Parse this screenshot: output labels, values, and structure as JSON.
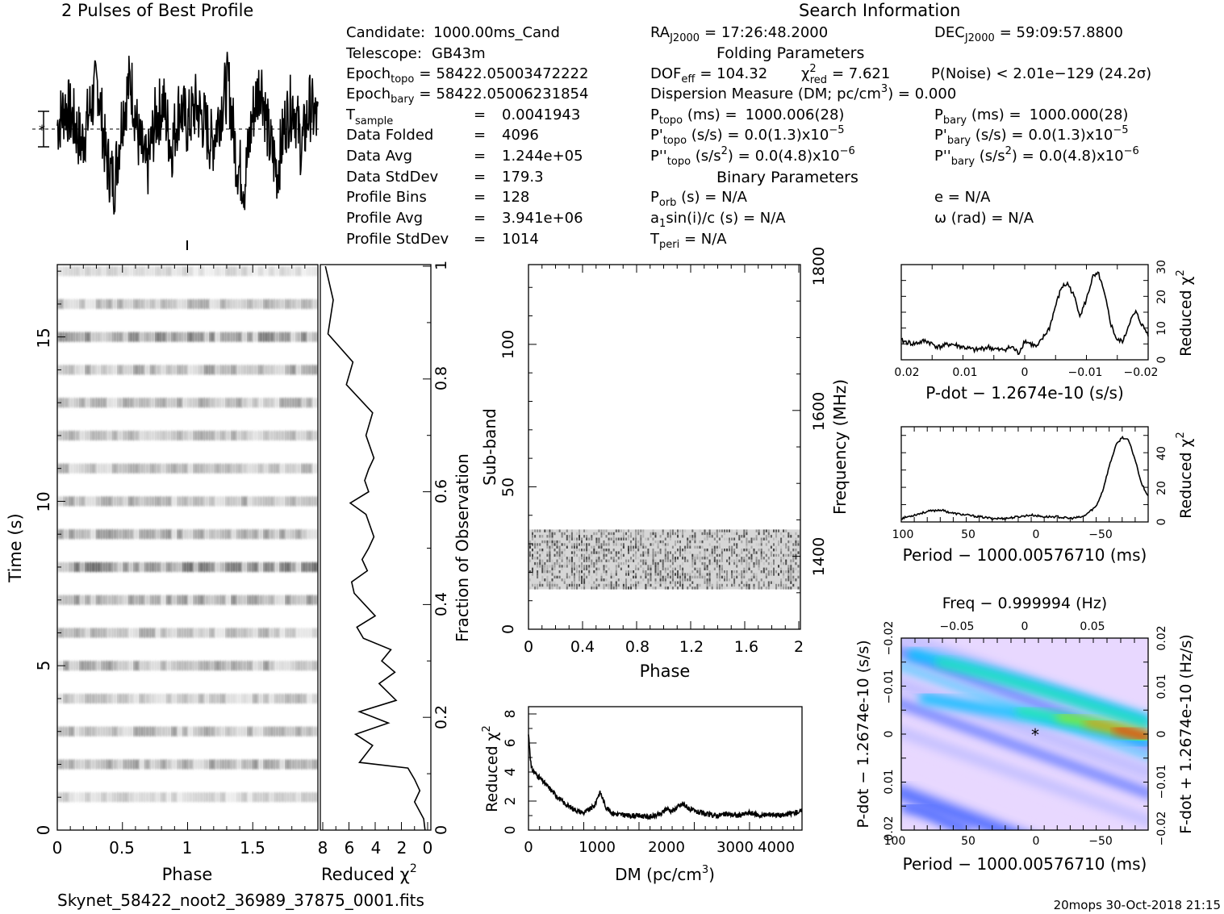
{
  "header": {
    "profile_title": "2 Pulses of Best Profile",
    "search_title": "Search Information",
    "folding_title": "Folding Parameters",
    "binary_title": "Binary Parameters"
  },
  "info_left": [
    {
      "label": "Candidate:",
      "eq": "",
      "value": "1000.00ms_Cand"
    },
    {
      "label": "Telescope:",
      "eq": "",
      "value": "GB43m"
    },
    {
      "label": "Epoch",
      "sub": "topo",
      "eq": "=",
      "value": "58422.05003472222"
    },
    {
      "label": "Epoch",
      "sub": "bary",
      "eq": "=",
      "value": "58422.05006231854"
    },
    {
      "label": "T",
      "sub": "sample",
      "eq": "=",
      "value": "0.0041943"
    },
    {
      "label": "Data Folded",
      "eq": "=",
      "value": "4096"
    },
    {
      "label": "Data Avg",
      "eq": "=",
      "value": "1.244e+05"
    },
    {
      "label": "Data StdDev",
      "eq": "=",
      "value": "179.3"
    },
    {
      "label": "Profile Bins",
      "eq": "=",
      "value": "128"
    },
    {
      "label": "Profile Avg",
      "eq": "=",
      "value": "3.941e+06"
    },
    {
      "label": "Profile StdDev",
      "eq": "=",
      "value": "1014"
    }
  ],
  "search": {
    "ra": {
      "label": "RA",
      "sub": "J2000",
      "value": "= 17:26:48.2000"
    },
    "dec": {
      "label": "DEC",
      "sub": "J2000",
      "value": "= 59:09:57.8800"
    },
    "dof": {
      "label": "DOF",
      "sub": "eff",
      "value": "= 104.32"
    },
    "chi": {
      "label": "χ",
      "sup": "2",
      "sub": "red",
      "value": "= 7.621"
    },
    "pnoise": "P(Noise) < 2.01e−129  (24.2σ)",
    "dm": "Dispersion Measure (DM; pc/cm",
    "dm_sup": "3",
    "dm_value": ") = 0.000",
    "p_topo": {
      "label": "P",
      "sub": "topo",
      "unit": " (ms) =",
      "value": "1000.006(28)"
    },
    "p_bary": {
      "label": "P",
      "sub": "bary",
      "unit": " (ms) =",
      "value": "1000.000(28)"
    },
    "pd_topo": {
      "label": "P'",
      "sub": "topo",
      "unit": " (s/s) =",
      "value": "0.0(1.3)x10",
      "exp": "−5"
    },
    "pd_bary": {
      "label": "P'",
      "sub": "bary",
      "unit": " (s/s) =",
      "value": "0.0(1.3)x10",
      "exp": "−5"
    },
    "pdd_topo": {
      "label": "P''",
      "sub": "topo",
      "unit": " (s/s",
      "unit_sup": "2",
      "unit_end": ") =",
      "value": "0.0(4.8)x10",
      "exp": "−6"
    },
    "pdd_bary": {
      "label": "P''",
      "sub": "bary",
      "unit": " (s/s",
      "unit_sup": "2",
      "unit_end": ") =",
      "value": "0.0(4.8)x10",
      "exp": "−6"
    },
    "porb": {
      "label": "P",
      "sub": "orb",
      "value": " (s) = N/A"
    },
    "e": "e = N/A",
    "asini": {
      "label": "a",
      "sub": "1",
      "value": "sin(i)/c (s) = N/A"
    },
    "omega": "ω (rad) = N/A",
    "tperi": {
      "label": "T",
      "sub": "peri",
      "value": " = N/A"
    }
  },
  "footer": {
    "filename": "Skynet_58422_noot2_36989_37875_0001.fits",
    "stamp": "20mops 30-Oct-2018 21:15"
  },
  "chart_data": [
    {
      "id": "pulse_profile",
      "type": "line",
      "title": "2 Pulses of Best Profile",
      "x": [
        0,
        0.0625,
        0.125,
        0.1875,
        0.25,
        0.3125,
        0.375,
        0.4375,
        0.5,
        0.5625,
        0.625,
        0.6875,
        0.75,
        0.8125,
        0.875,
        0.9375,
        1.0,
        1.0625,
        1.125,
        1.1875,
        1.25,
        1.3125,
        1.375,
        1.4375,
        1.5,
        1.5625,
        1.625,
        1.6875,
        1.75,
        1.8125,
        1.875,
        1.9375,
        2.0
      ],
      "y": [
        0.1,
        0.6,
        0.2,
        -0.4,
        0.5,
        1.2,
        -0.8,
        -1.4,
        0.4,
        1.3,
        -0.3,
        -1.1,
        0.2,
        0.7,
        -0.5,
        0.6,
        0.1,
        0.6,
        0.2,
        -0.4,
        0.5,
        1.2,
        -0.8,
        -1.4,
        0.4,
        1.3,
        -0.3,
        -1.1,
        0.2,
        0.7,
        -0.5,
        0.6,
        0.1
      ]
    },
    {
      "id": "time_phase",
      "type": "heatmap",
      "xlabel": "Phase",
      "ylabel": "Time (s)",
      "xticks": [
        "0",
        "0.5",
        "1",
        "1.5"
      ],
      "yticks": [
        "0",
        "5",
        "10",
        "15"
      ],
      "xlim": [
        0,
        2
      ],
      "ylim": [
        0,
        17.2
      ],
      "subint_times_s": [
        1.0,
        2.0,
        3.0,
        4.0,
        5.0,
        6.0,
        7.0,
        8.0,
        9.0,
        10.0,
        11.0,
        12.0,
        13.0,
        14.0,
        15.0,
        16.0,
        17.0
      ],
      "intensity": [
        0.35,
        0.6,
        0.55,
        0.45,
        0.6,
        0.5,
        0.65,
        0.85,
        0.6,
        0.55,
        0.5,
        0.5,
        0.55,
        0.6,
        0.75,
        0.5,
        0.3
      ]
    },
    {
      "id": "time_chi2",
      "type": "line",
      "xlabel": "Reduced χ",
      "xlabel_sup": "2",
      "ylabel_right": "Fraction of Observation",
      "xticks": [
        "8",
        "6",
        "4",
        "2",
        "0"
      ],
      "yticks": [
        "0",
        "0.2",
        "0.4",
        "0.6",
        "0.8",
        "1"
      ],
      "xlim": [
        8,
        0
      ],
      "ylim": [
        0,
        1
      ],
      "chi2": [
        0.2,
        0.3,
        1.0,
        0.6,
        1.0,
        1.5,
        5.2,
        4.2,
        5.5,
        3.0,
        5.2,
        2.4,
        3.7,
        2.5,
        3.5,
        2.8,
        4.9,
        5.4,
        4.0,
        4.8,
        5.6,
        5.8,
        4.6,
        5.0,
        4.5,
        4.1,
        4.4,
        4.7,
        5.9,
        4.5,
        4.8,
        4.5,
        4.1,
        4.7,
        4.2,
        6.2,
        5.7,
        7.6,
        7.2,
        7.8
      ],
      "frac": [
        0.0,
        0.02,
        0.05,
        0.07,
        0.09,
        0.11,
        0.12,
        0.15,
        0.17,
        0.19,
        0.21,
        0.23,
        0.26,
        0.28,
        0.3,
        0.32,
        0.34,
        0.36,
        0.38,
        0.4,
        0.42,
        0.44,
        0.46,
        0.48,
        0.5,
        0.52,
        0.54,
        0.56,
        0.58,
        0.6,
        0.62,
        0.64,
        0.66,
        0.7,
        0.74,
        0.79,
        0.83,
        0.88,
        0.94,
        1.0
      ]
    },
    {
      "id": "subband_phase",
      "type": "heatmap",
      "xlabel": "Phase",
      "ylabel": "Sub-band",
      "ylabel_right": "Frequency (MHz)",
      "xticks": [
        "0",
        "0.4",
        "0.8",
        "1.2",
        "1.6",
        "2"
      ],
      "yticks": [
        "0",
        "50",
        "100"
      ],
      "yticks_right": [
        "1400",
        "1600",
        "1800"
      ],
      "xlim": [
        0,
        2
      ],
      "ylim": [
        0,
        128
      ],
      "active_subbands": [
        14,
        35
      ]
    },
    {
      "id": "dm_chi2",
      "type": "line",
      "xlabel": "DM (pc/cm",
      "xlabel_sup": "3",
      "xlabel_end": ")",
      "ylabel": "Reduced χ",
      "ylabel_sup": "2",
      "xticks": [
        "0",
        "1000",
        "2000",
        "3000",
        "4000"
      ],
      "yticks": [
        "0",
        "2",
        "4",
        "6",
        "8"
      ],
      "xlim": [
        0,
        4950
      ],
      "ylim": [
        0,
        8.5
      ],
      "x": [
        0,
        50,
        100,
        200,
        300,
        400,
        500,
        600,
        700,
        800,
        900,
        1000,
        1100,
        1200,
        1250,
        1300,
        1350,
        1400,
        1500,
        1600,
        1800,
        2000,
        2200,
        2400,
        2500,
        2600,
        2700,
        2800,
        2900,
        3000,
        3200,
        3400,
        3600,
        3800,
        4000,
        4200,
        4400,
        4600,
        4800,
        4950
      ],
      "y": [
        6.6,
        4.3,
        4.0,
        3.6,
        3.2,
        2.8,
        2.4,
        2.0,
        1.7,
        1.5,
        1.3,
        1.2,
        1.4,
        1.7,
        2.3,
        2.6,
        2.1,
        1.6,
        1.2,
        1.1,
        1.0,
        1.0,
        0.9,
        1.1,
        1.5,
        1.3,
        1.6,
        1.8,
        1.5,
        1.3,
        1.1,
        1.0,
        1.1,
        1.0,
        1.2,
        1.0,
        1.1,
        1.0,
        1.2,
        1.3
      ]
    },
    {
      "id": "pdot_chi2",
      "type": "line",
      "xlabel": "P-dot − 1.2674e-10 (s/s)",
      "ylabel_right": "Reduced χ",
      "ylabel_right_sup": "2",
      "xticks": [
        "0.02",
        "0.01",
        "0",
        "−0.01",
        "−0.02"
      ],
      "yticks": [
        "0",
        "10",
        "20",
        "30"
      ],
      "xlim": [
        0.02,
        -0.02
      ],
      "ylim": [
        0,
        30
      ],
      "x": [
        0.02,
        0.018,
        0.016,
        0.014,
        0.012,
        0.01,
        0.008,
        0.006,
        0.004,
        0.002,
        0.001,
        0,
        -0.002,
        -0.004,
        -0.005,
        -0.006,
        -0.007,
        -0.008,
        -0.009,
        -0.01,
        -0.011,
        -0.012,
        -0.013,
        -0.014,
        -0.015,
        -0.016,
        -0.017,
        -0.018,
        -0.019,
        -0.02
      ],
      "y": [
        6,
        5,
        6,
        4,
        5,
        4,
        3,
        4,
        3,
        4,
        2,
        6,
        4,
        10,
        17,
        23,
        24,
        20,
        14,
        19,
        26,
        27,
        20,
        11,
        6,
        6,
        12,
        15,
        11,
        8
      ]
    },
    {
      "id": "period_chi2",
      "type": "line",
      "xlabel": "Period − 1000.00576710 (ms)",
      "ylabel_right": "Reduced χ",
      "ylabel_right_sup": "2",
      "xticks": [
        "100",
        "50",
        "0",
        "−50"
      ],
      "yticks": [
        "0",
        "20",
        "40"
      ],
      "xlim": [
        100,
        -90
      ],
      "ylim": [
        0,
        55
      ],
      "x": [
        100,
        90,
        80,
        70,
        60,
        50,
        40,
        30,
        20,
        10,
        0,
        -10,
        -20,
        -30,
        -40,
        -50,
        -55,
        -60,
        -65,
        -70,
        -75,
        -80,
        -85,
        -90
      ],
      "y": [
        2,
        4,
        6,
        7,
        5,
        4,
        3,
        2,
        2,
        3,
        4,
        3,
        3,
        2,
        3,
        9,
        18,
        32,
        44,
        49,
        47,
        36,
        22,
        15
      ]
    },
    {
      "id": "period_pdot_plane",
      "type": "heatmap",
      "title": "Freq − 0.999994 (Hz)",
      "xlabel": "Period − 1000.00576710 (ms)",
      "ylabel": "P-dot − 1.2674e-10 (s/s)",
      "ylabel_right": "F-dot + 1.2674e-10 (Hz/s)",
      "xticks": [
        "100",
        "50",
        "0",
        "−50"
      ],
      "xticks_top": [
        "−0.05",
        "0",
        "0.05"
      ],
      "yticks": [
        "−0.02",
        "−0.01",
        "0",
        "0.01",
        "0.02"
      ],
      "yticks_right": [
        "0.02",
        "0.01",
        "0",
        "−0.01",
        "−0.02"
      ],
      "xlim": [
        100,
        -90
      ],
      "ylim": [
        -0.02,
        0.02
      ],
      "best_marker": {
        "period": 0,
        "pdot": 0
      },
      "colors": [
        "#ffffff",
        "#e8d8ff",
        "#b8b8ff",
        "#4060ff",
        "#00c0ff",
        "#20f0a0",
        "#a0f000",
        "#ff8000",
        "#ff0000"
      ]
    }
  ]
}
